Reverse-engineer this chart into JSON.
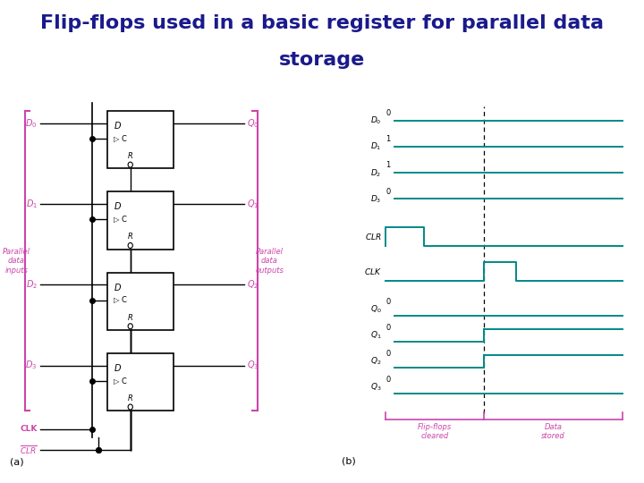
{
  "title_line1": "Flip-flops used in a basic register for parallel data",
  "title_line2": "storage",
  "title_color": "#1a1a8c",
  "title_fontsize": 16,
  "bg_color": "#ffffff",
  "pink": "#cc44aa",
  "black": "#000000",
  "teal": "#008888",
  "D_values": [
    0,
    1,
    1,
    0
  ],
  "Q_values_stored": [
    0,
    1,
    1,
    0
  ],
  "sub_label_a": "(a)",
  "sub_label_b": "(b)",
  "ff_count": 4
}
